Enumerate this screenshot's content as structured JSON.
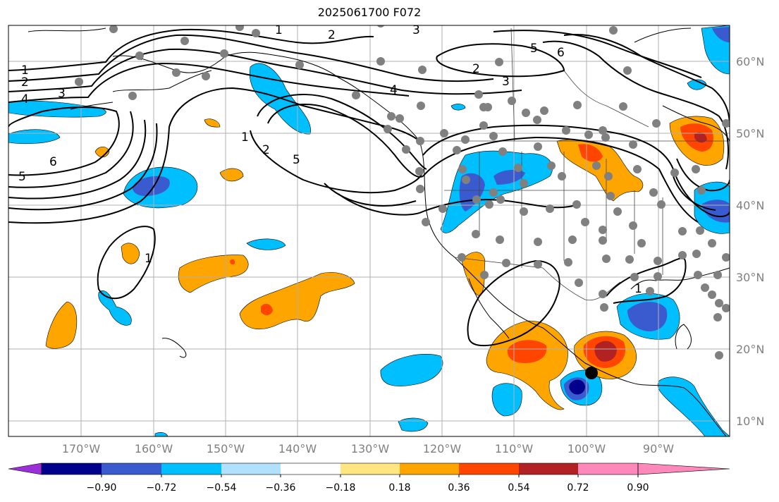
{
  "title": "2025061700 F072",
  "lon_labels": [
    "170°W",
    "160°W",
    "150°W",
    "140°W",
    "130°W",
    "120°W",
    "110°W",
    "100°W",
    "90°W"
  ],
  "lat_labels": [
    "60°N",
    "50°N",
    "40°N",
    "30°N",
    "20°N",
    "10°N"
  ],
  "contour_labels": [
    "1",
    "2",
    "3",
    "4",
    "5",
    "6"
  ],
  "colorbar": {
    "tick_labels": [
      "−0.90",
      "−0.72",
      "−0.54",
      "−0.36",
      "−0.18",
      "0.18",
      "0.36",
      "0.54",
      "0.72",
      "0.90"
    ],
    "colors": [
      "#9b30d9",
      "#00008b",
      "#3a5bd0",
      "#00bfff",
      "#b0e2ff",
      "#ffffff",
      "#ffe680",
      "#ffa500",
      "#ff4500",
      "#b22222",
      "#ff88bb"
    ]
  }
}
